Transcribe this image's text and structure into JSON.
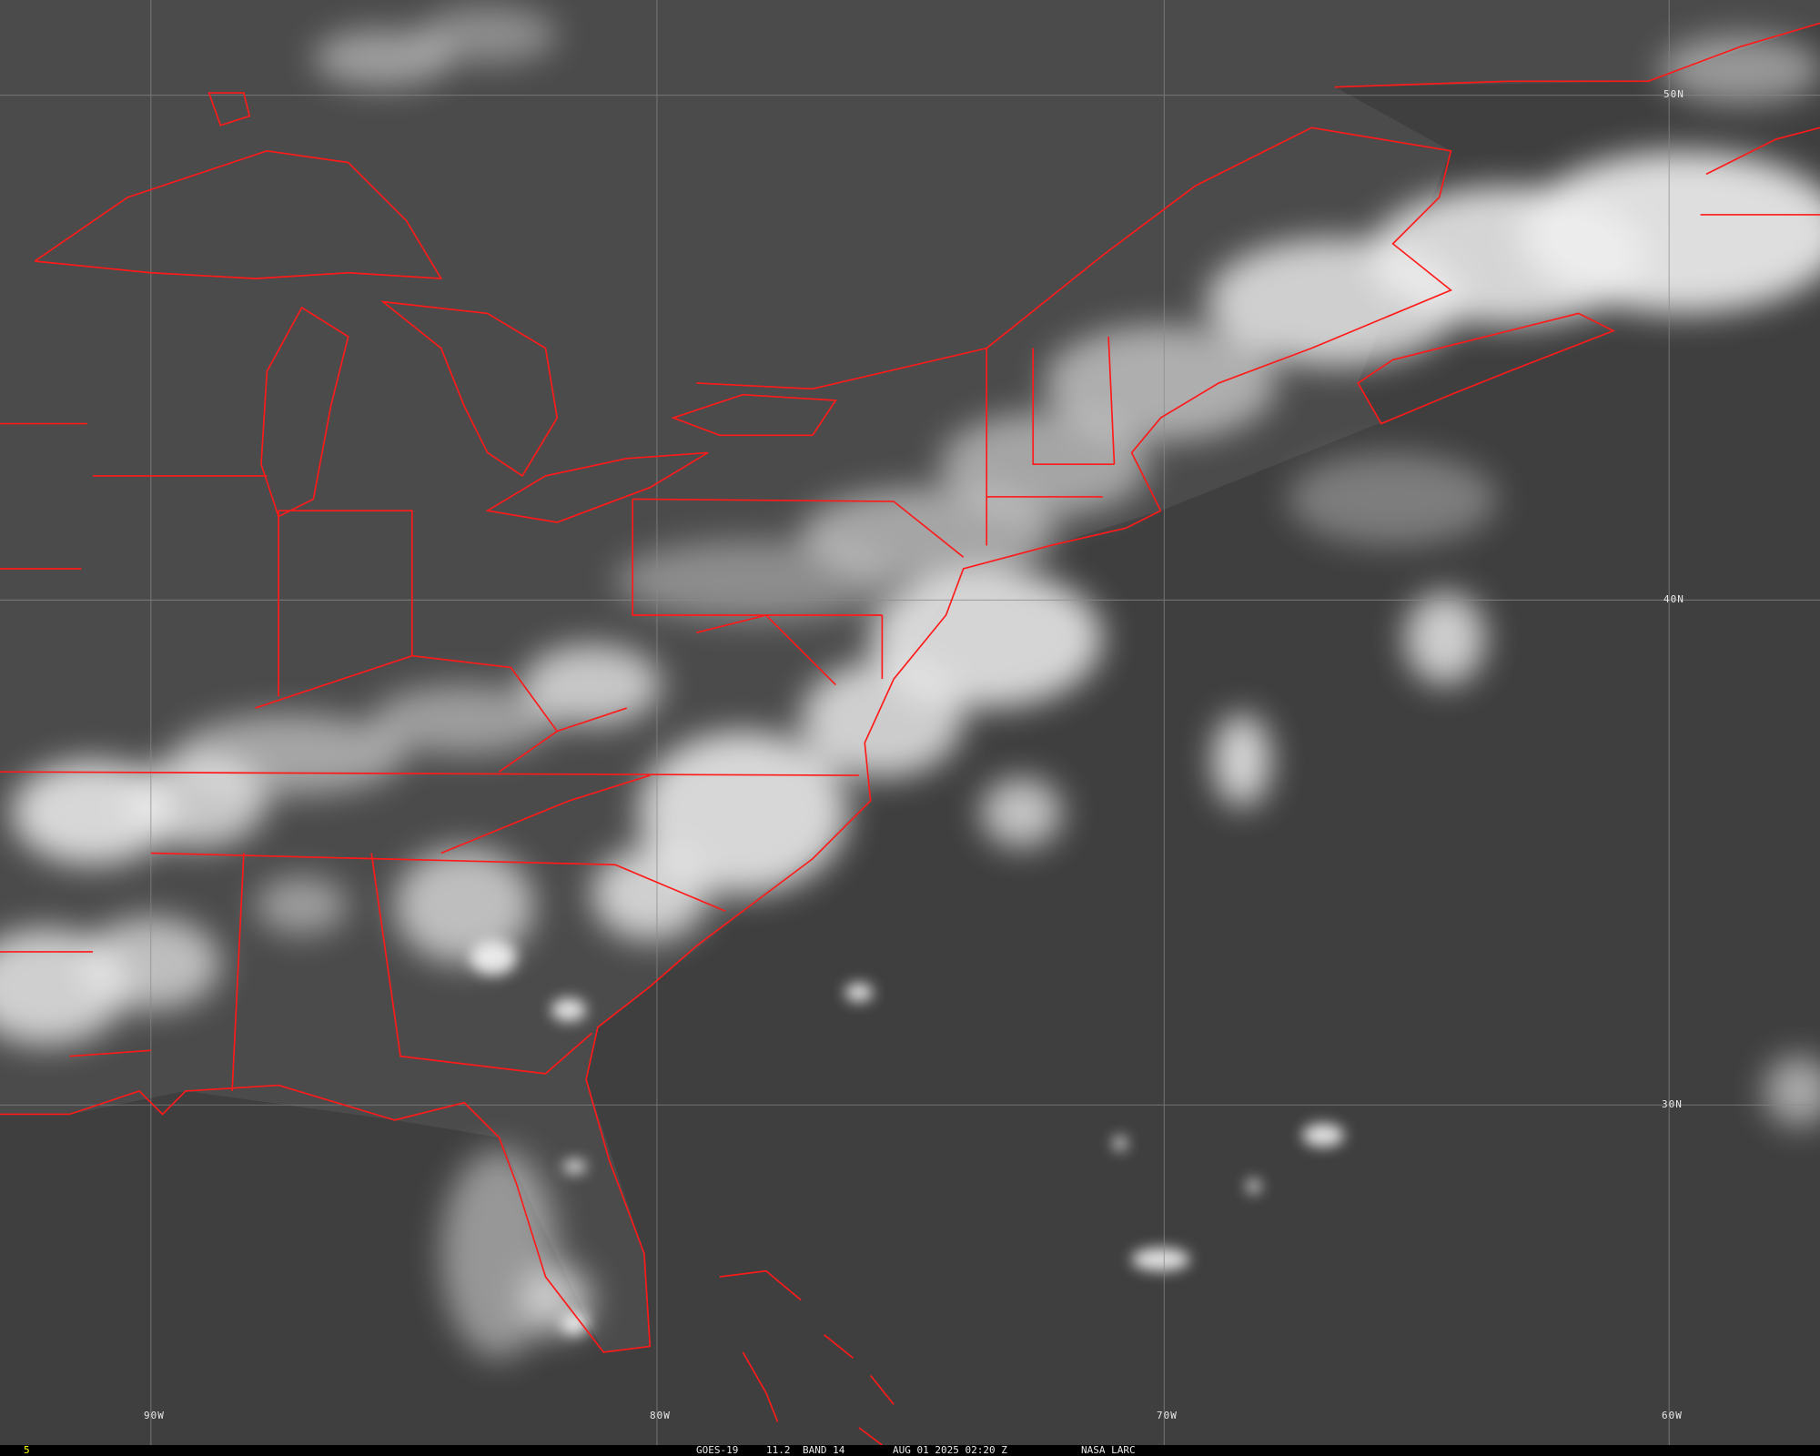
{
  "image": {
    "satellite": "GOES-19",
    "channel": "11.2",
    "band": "BAND 14",
    "datetime": "AUG 01 2025 02:20 Z",
    "credit": "NASA LARC",
    "frame_number": "5"
  },
  "grid": {
    "latitude_labels": [
      "50N",
      "40N",
      "30N"
    ],
    "longitude_labels": [
      "90W",
      "80W",
      "70W",
      "60W"
    ]
  },
  "colors": {
    "background": "#4a4a4a",
    "land_dark": "#444444",
    "ocean": "#3e3e3e",
    "cloud": "#f0f0f0",
    "boundary": "#ff1a1a",
    "grid": "#8a8a8a",
    "frame_number": "#ffff00",
    "caption": "#e8e8e8"
  }
}
